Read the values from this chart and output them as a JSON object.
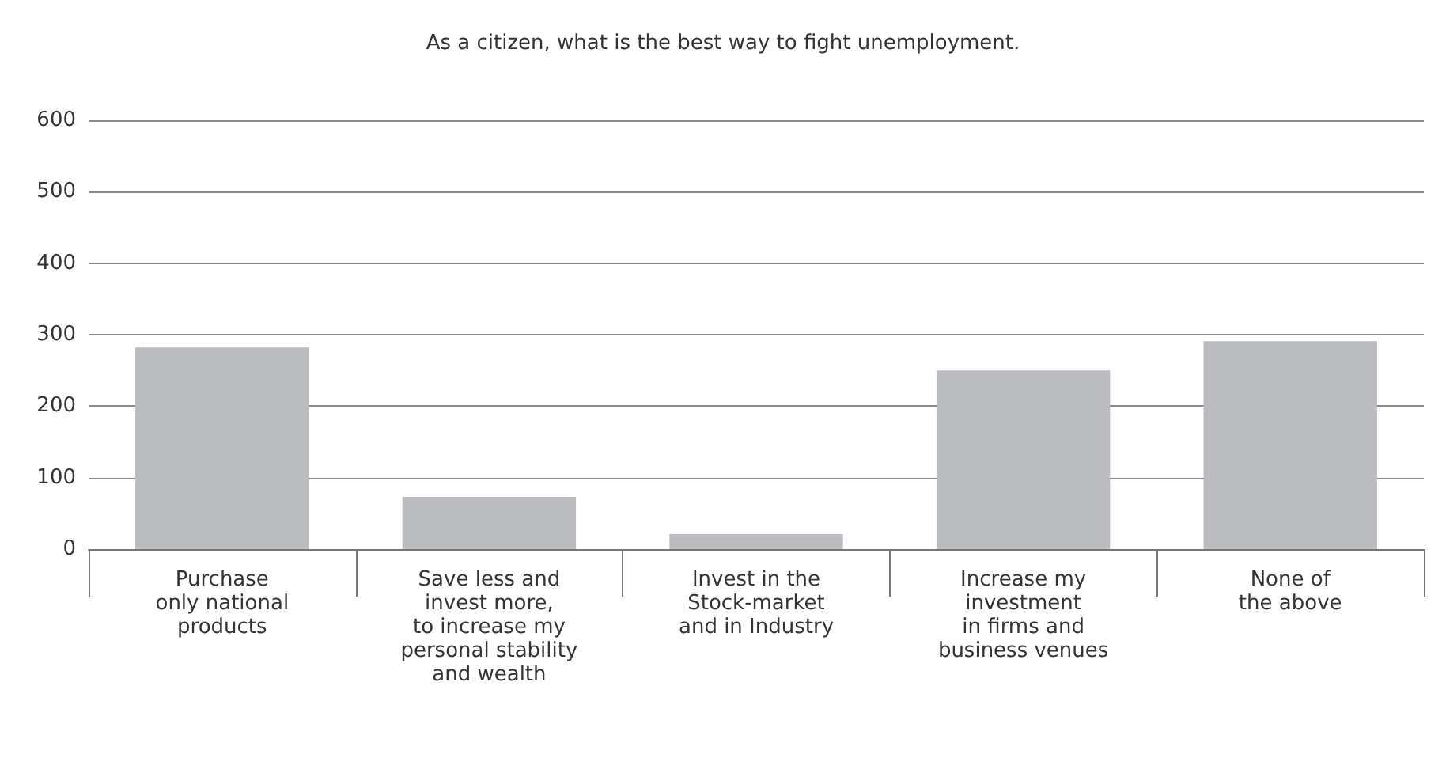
{
  "chart_data": {
    "type": "bar",
    "title": "As a citizen, what is the best way to fight unemployment.",
    "categories": [
      "Purchase\nonly national\nproducts",
      "Save less and\ninvest more,\nto increase my\npersonal stability\nand wealth",
      "Invest in the\nStock-market\nand in Industry",
      "Increase my\ninvestment\nin firms and\nbusiness venues",
      "None of\nthe above"
    ],
    "values": [
      282,
      73,
      21,
      250,
      291
    ],
    "color": "#bbbcc0",
    "ylim": [
      0,
      600
    ],
    "yticks": [
      0,
      100,
      200,
      300,
      400,
      500,
      600
    ],
    "grid": "y"
  }
}
